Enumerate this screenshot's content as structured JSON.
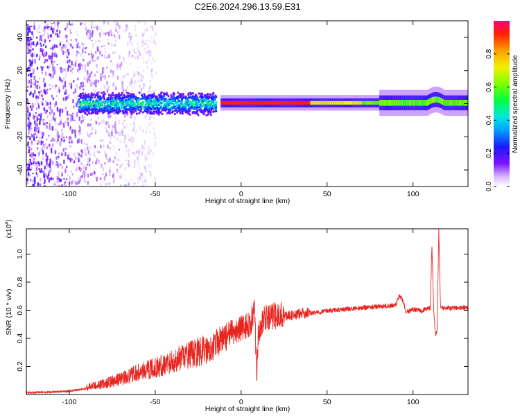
{
  "figure_title": "C2E6.2024.296.13.59.E31",
  "chart_data": [
    {
      "type": "heatmap",
      "title": "C2E6.2024.296.13.59.E31",
      "xlabel": "Height of straight line (km)",
      "ylabel": "Frequency (Hz)",
      "xlim": [
        -125,
        132
      ],
      "ylim": [
        -50,
        50
      ],
      "xticks": [
        -100,
        -50,
        0,
        50,
        100
      ],
      "yticks": [
        -40,
        -20,
        0,
        20,
        40
      ],
      "description_series": [
        {
          "name": "scattered noise region",
          "x_range": [
            -125,
            -60
          ],
          "freq_range": [
            -50,
            50
          ]
        },
        {
          "name": "blue/cyan band",
          "x_range": [
            -95,
            -15
          ],
          "freq_center": 0,
          "freq_halfwidth": 6
        },
        {
          "name": "strong narrow line (red)",
          "x_range": [
            -12,
            132
          ],
          "freq_center": 0.5,
          "freq_halfwidth": 1.5
        },
        {
          "name": "feature near 113 km",
          "x": 113,
          "freq_center": 2
        }
      ],
      "colorbar": {
        "label": "Normalized spectral amplitude",
        "ticks": [
          "0.0",
          "0.2",
          "0.4",
          "0.6",
          "0.8"
        ],
        "range": [
          0,
          1
        ]
      }
    },
    {
      "type": "line",
      "xlabel": "Height of straight line (km)",
      "ylabel": "SNR (10 * v/v)",
      "y_multiplier": "(x10",
      "y_multiplier_exp": "4",
      "y_multiplier_close": ")",
      "xlim": [
        -125,
        132
      ],
      "ylim": [
        0,
        1.18
      ],
      "xticks": [
        -100,
        -50,
        0,
        50,
        100
      ],
      "yticks": [
        "0.2",
        "0.4",
        "0.6",
        "0.8",
        "1.0"
      ],
      "series": [
        {
          "name": "SNR",
          "color": "#e8251f",
          "x": [
            -125,
            -110,
            -100,
            -90,
            -80,
            -70,
            -60,
            -50,
            -40,
            -30,
            -20,
            -10,
            -5,
            0,
            5,
            8,
            9,
            10,
            12,
            15,
            20,
            30,
            40,
            50,
            60,
            70,
            80,
            90,
            92,
            94,
            96,
            100,
            105,
            110,
            111,
            112,
            113,
            114,
            115,
            116,
            118,
            120,
            125,
            132
          ],
          "values": [
            0.01,
            0.015,
            0.02,
            0.04,
            0.06,
            0.09,
            0.13,
            0.16,
            0.2,
            0.24,
            0.28,
            0.36,
            0.4,
            0.43,
            0.46,
            0.55,
            0.1,
            0.4,
            0.48,
            0.5,
            0.52,
            0.55,
            0.57,
            0.59,
            0.6,
            0.61,
            0.62,
            0.63,
            0.7,
            0.66,
            0.58,
            0.6,
            0.59,
            0.61,
            1.06,
            0.62,
            0.42,
            0.45,
            1.17,
            0.62,
            0.6,
            0.61,
            0.61,
            0.61
          ]
        }
      ]
    }
  ]
}
